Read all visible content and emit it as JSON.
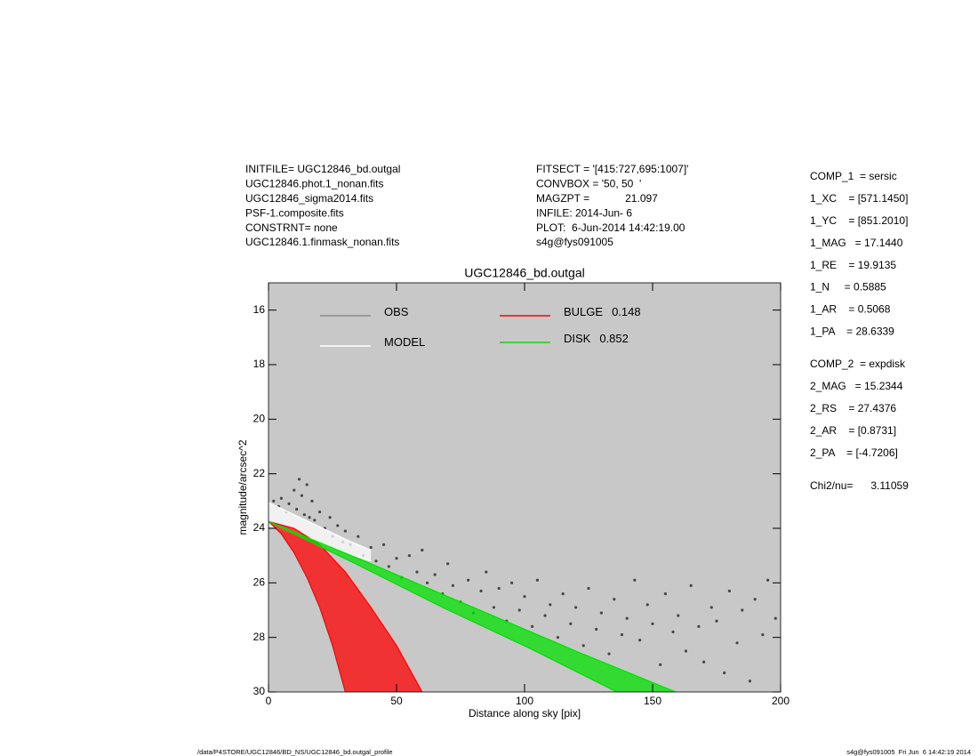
{
  "chart_data": {
    "type": "scatter",
    "title": "UGC12846_bd.outgal",
    "x_label": "Distance along sky [pix]",
    "y_label": "magnitude/arcsec^2",
    "xlim": [
      0,
      200
    ],
    "ylim": [
      30,
      15
    ],
    "xticks": [
      0,
      50,
      100,
      150,
      200
    ],
    "yticks": [
      16,
      18,
      20,
      22,
      24,
      26,
      28,
      30
    ],
    "background": "#c8c8c8",
    "info_left": [
      "INITFILE= UGC12846_bd.outgal",
      "UGC12846.phot.1_nonan.fits",
      "UGC12846_sigma2014.fits",
      "PSF-1.composite.fits",
      "CONSTRNT= none",
      "UGC12846.1.finmask_nonan.fits"
    ],
    "info_middle": [
      "FITSECT = '[415:727,695:1007]'",
      "CONVBOX = '50, 50  '",
      "MAGZPT =            21.097",
      "INFILE: 2014-Jun- 6",
      "PLOT:  6-Jun-2014 14:42:19.00",
      "s4g@fys091005"
    ],
    "params_comp1": [
      "COMP_1  = sersic",
      "1_XC    = [571.1450]",
      "1_YC    = [851.2010]",
      "1_MAG   = 17.1440",
      "1_RE    = 19.9135",
      "1_N     = 0.5885",
      "1_AR    = 0.5068",
      "1_PA    = 28.6339"
    ],
    "params_comp2": [
      "COMP_2  = expdisk",
      "2_MAG   = 15.2344",
      "2_RS    = 27.4376",
      "2_AR    = [0.8731]",
      "2_PA    = [-4.7206]"
    ],
    "chi2": "Chi2/nu=      3.11059",
    "footer_left": "/data/P4STORE/UGC12846/BD_NS/UGC12846_bd.outgal_profile",
    "footer_right": "s4g@fys091005  Fri Jun  6 14:42:19 2014",
    "observed": {
      "name": "OBS",
      "color": "#8c8c8c",
      "point_color": "#474747",
      "x": [
        2,
        4,
        5,
        7,
        8,
        10,
        11,
        12,
        13,
        14,
        15,
        16,
        17,
        18,
        20,
        22,
        24,
        25,
        27,
        29,
        30,
        32,
        35,
        37,
        40,
        42,
        45,
        47,
        50,
        52,
        55,
        58,
        60,
        62,
        65,
        68,
        70,
        72,
        75,
        78,
        80,
        83,
        85,
        88,
        90,
        93,
        95,
        98,
        100,
        103,
        105,
        108,
        110,
        113,
        115,
        118,
        120,
        123,
        125,
        128,
        130,
        133,
        135,
        138,
        140,
        143,
        145,
        148,
        150,
        153,
        155,
        158,
        160,
        163,
        165,
        168,
        170,
        173,
        175,
        178,
        180,
        183,
        185,
        188,
        190,
        193,
        195,
        198
      ],
      "values": [
        23.0,
        23.2,
        22.9,
        23.4,
        23.1,
        22.6,
        23.3,
        22.2,
        22.8,
        23.5,
        22.4,
        23.6,
        23.0,
        23.7,
        23.4,
        24.0,
        23.6,
        24.3,
        23.9,
        24.5,
        24.1,
        24.6,
        24.3,
        25.0,
        24.7,
        25.2,
        24.6,
        25.4,
        25.1,
        25.8,
        25.0,
        25.6,
        24.8,
        26.0,
        25.7,
        26.4,
        25.3,
        26.1,
        26.7,
        25.9,
        27.1,
        26.3,
        25.6,
        26.9,
        26.2,
        27.4,
        26.0,
        27.0,
        26.5,
        27.6,
        25.9,
        27.2,
        26.8,
        28.0,
        26.4,
        27.5,
        26.9,
        28.3,
        26.2,
        27.7,
        27.1,
        28.6,
        26.6,
        27.9,
        27.3,
        25.9,
        28.1,
        26.8,
        27.5,
        29.0,
        26.4,
        27.8,
        27.2,
        28.5,
        26.1,
        27.6,
        28.9,
        26.9,
        27.4,
        29.3,
        26.3,
        28.2,
        27.0,
        29.6,
        26.6,
        27.9,
        25.9,
        27.3
      ]
    },
    "series": [
      {
        "name": "MODEL",
        "color": "#ffffff",
        "x": [
          0,
          10,
          20,
          30,
          40
        ],
        "values": [
          23.05,
          23.5,
          23.95,
          24.4,
          24.8
        ],
        "x2": [
          0,
          10,
          20,
          30,
          40
        ],
        "values2": [
          23.9,
          24.2,
          24.55,
          24.9,
          25.2
        ]
      },
      {
        "name": "BULGE",
        "fraction": 0.148,
        "color": "#ff0000",
        "x": [
          0,
          10,
          20,
          30,
          40,
          50,
          60
        ],
        "values": [
          23.75,
          24.0,
          24.6,
          25.6,
          26.9,
          28.3,
          30.0
        ],
        "x2": [
          0,
          5,
          10,
          15,
          20,
          25,
          30
        ],
        "values2": [
          23.75,
          24.2,
          24.9,
          25.8,
          26.9,
          28.3,
          30.0
        ]
      },
      {
        "name": "DISK",
        "fraction": 0.852,
        "color": "#00e000",
        "x": [
          0,
          40,
          80,
          120,
          159
        ],
        "values": [
          23.75,
          25.3,
          26.9,
          28.5,
          30.0
        ],
        "x2": [
          0,
          34,
          68,
          102,
          136
        ],
        "values2": [
          23.75,
          25.3,
          26.9,
          28.4,
          30.0
        ]
      }
    ]
  }
}
